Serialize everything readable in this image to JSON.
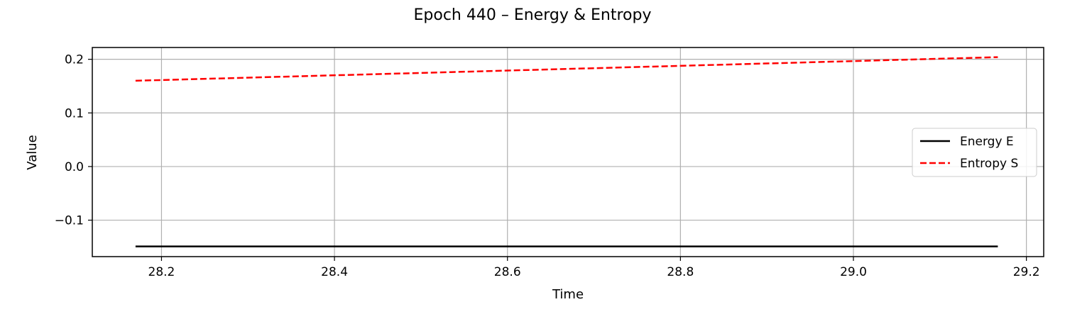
{
  "chart_data": {
    "type": "line",
    "title": "Epoch 440 – Energy & Entropy",
    "xlabel": "Time",
    "ylabel": "Value",
    "xlim": [
      28.12,
      29.22
    ],
    "ylim": [
      -0.168,
      0.222
    ],
    "xticks": [
      28.2,
      28.4,
      28.6,
      28.8,
      29.0,
      29.2
    ],
    "xtick_labels": [
      "28.2",
      "28.4",
      "28.6",
      "28.8",
      "29.0",
      "29.2"
    ],
    "yticks": [
      -0.1,
      0.0,
      0.1,
      0.2
    ],
    "ytick_labels": [
      "−0.1",
      "0.0",
      "0.1",
      "0.2"
    ],
    "grid": true,
    "legend_position": "center-right",
    "series": [
      {
        "name": "Energy E",
        "color": "#000000",
        "dash": "solid",
        "x": [
          28.17,
          29.167
        ],
        "y": [
          -0.149,
          -0.149
        ]
      },
      {
        "name": "Entropy S",
        "color": "#ff0000",
        "dash": "dashed",
        "x": [
          28.17,
          29.167
        ],
        "y": [
          0.16,
          0.204
        ]
      }
    ]
  }
}
